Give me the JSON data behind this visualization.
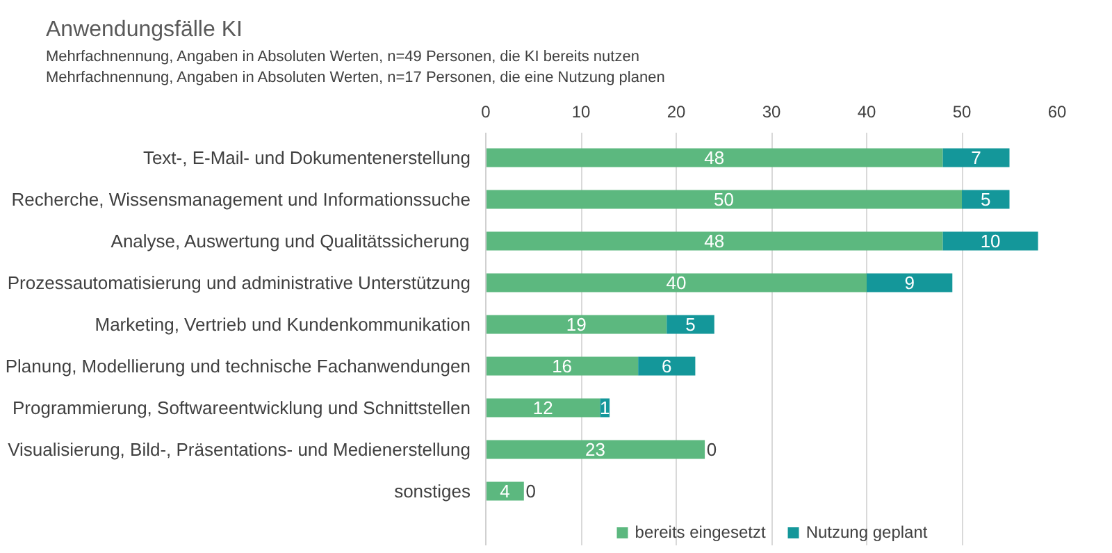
{
  "chart_data": {
    "type": "bar",
    "orientation": "horizontal",
    "stacked": true,
    "title": "Anwendungsfälle KI",
    "subtitle": "Mehrfachnennung, Angaben in Absoluten Werten, n=49 Personen, die KI bereits nutzen\nMehrfachnennung, Angaben in Absoluten Werten, n=17 Personen, die eine Nutzung planen",
    "categories": [
      "Text-, E-Mail- und Dokumentenerstellung",
      "Recherche, Wissensmanagement und Informationssuche",
      "Analyse, Auswertung und Qualitätssicherung",
      "Prozessautomatisierung und administrative Unterstützung",
      "Marketing, Vertrieb und Kundenkommunikation",
      "Planung, Modellierung und technische Fachanwendungen",
      "Programmierung, Softwareentwicklung und Schnittstellen",
      "Visualisierung, Bild-, Präsentations- und Medienerstellung",
      "sonstiges"
    ],
    "series": [
      {
        "name": "bereits eingesetzt",
        "color": "#5cb87f",
        "values": [
          48,
          50,
          48,
          40,
          19,
          16,
          12,
          23,
          4
        ]
      },
      {
        "name": "Nutzung geplant",
        "color": "#14979a",
        "values": [
          7,
          5,
          10,
          9,
          5,
          6,
          1,
          0,
          0
        ]
      }
    ],
    "xlim": [
      0,
      60
    ],
    "xticks": [
      0,
      10,
      20,
      30,
      40,
      50,
      60
    ],
    "grid": "x",
    "legend": "bottom",
    "data_labels": true
  }
}
